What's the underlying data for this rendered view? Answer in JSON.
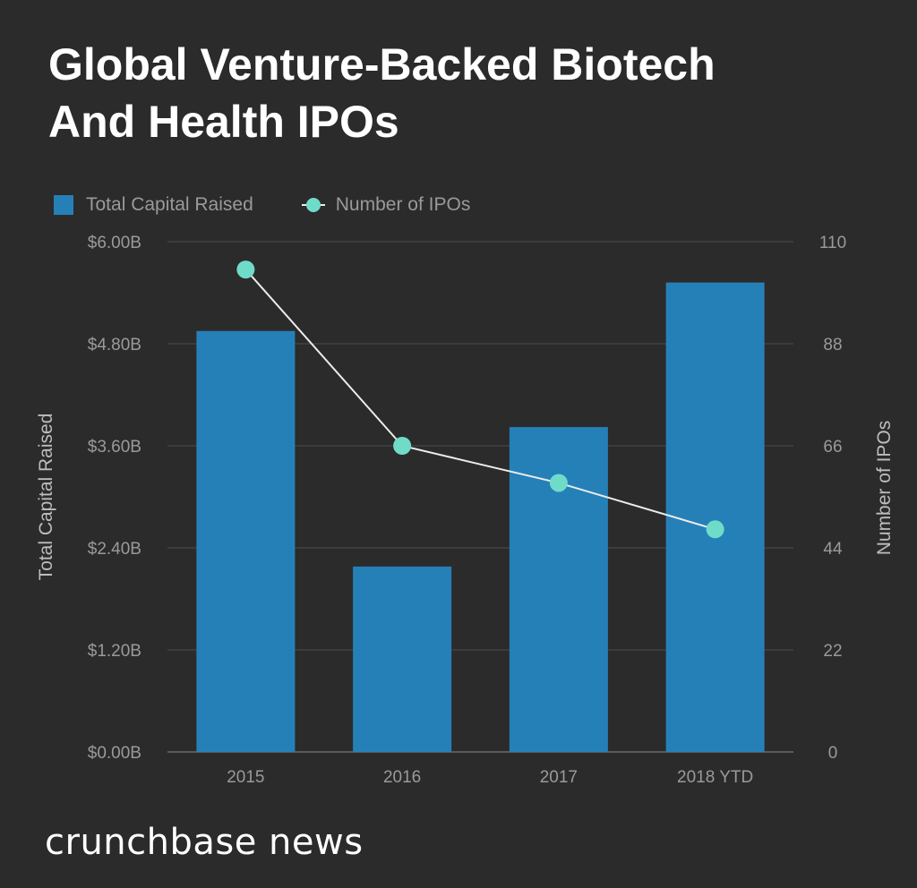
{
  "chart_data": {
    "type": "bar",
    "title_lines": [
      "Global Venture-Backed Biotech",
      "And Health IPOs"
    ],
    "categories": [
      "2015",
      "2016",
      "2017",
      "2018 YTD"
    ],
    "series": [
      {
        "name": "Total Capital Raised",
        "kind": "bar",
        "axis": "left",
        "values": [
          4.95,
          2.18,
          3.82,
          5.52
        ],
        "color": "#2680b8"
      },
      {
        "name": "Number of IPOs",
        "kind": "line",
        "axis": "right",
        "values": [
          104,
          66,
          58,
          48
        ],
        "color": "#6fdcc9",
        "line_color": "#ececec"
      }
    ],
    "ylabel": "Total Capital Raised",
    "y2label": "Number of IPOs",
    "ylim": [
      0,
      6
    ],
    "y2lim": [
      0,
      110
    ],
    "yticks": [
      "$0.00B",
      "$1.20B",
      "$2.40B",
      "$3.60B",
      "$4.80B",
      "$6.00B"
    ],
    "y2ticks": [
      "0",
      "22",
      "44",
      "66",
      "88",
      "110"
    ],
    "grid": true,
    "legend_position": "top-left"
  },
  "brand": "crunchbase news"
}
